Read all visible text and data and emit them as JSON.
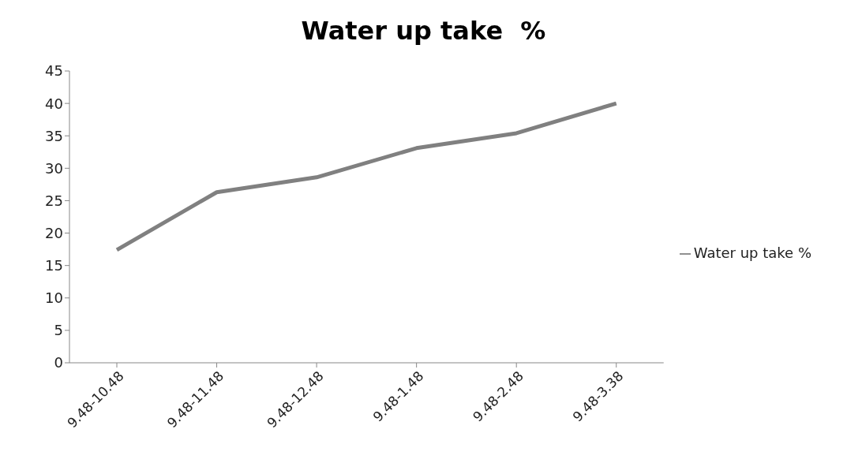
{
  "chart_data": {
    "type": "line",
    "title": "Water up take  %",
    "categories": [
      "9.48-10.48",
      "9.48-11.48",
      "9.48-12.48",
      "9.48-1.48",
      "9.48-2.48",
      "9.48-3.38"
    ],
    "series": [
      {
        "name": "Water up take  %",
        "color": "#808080",
        "values": [
          17.4,
          26.3,
          28.6,
          33.1,
          35.4,
          40.0
        ]
      }
    ],
    "ylim": [
      0,
      45
    ],
    "yticks": [
      0,
      5,
      10,
      15,
      20,
      25,
      30,
      35,
      40,
      45
    ],
    "grid": false,
    "legend": "right",
    "marker": "none",
    "line_style": "solid"
  }
}
